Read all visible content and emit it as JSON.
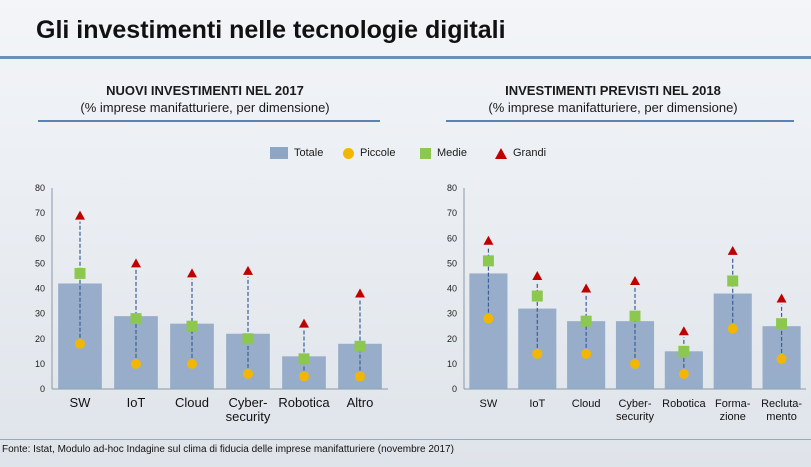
{
  "page": {
    "title": "Gli investimenti nelle tecnologie digitali",
    "footer": "Fonte: Istat, Modulo ad-hoc Indagine sul clima di fiducia delle imprese manifatturiere (novembre 2017)"
  },
  "legend": [
    "Totale",
    "Piccole",
    "Medie",
    "Grandi"
  ],
  "colors": {
    "totale": "#8ea6c4",
    "piccole": "#f2b705",
    "medie": "#8cc850",
    "grandi": "#c00000",
    "line": "#3b5f96"
  },
  "chart_data": [
    {
      "type": "bar",
      "title": "NUOVI INVESTIMENTI NEL 2017",
      "subtitle": "(% imprese manifatturiere, per dimensione)",
      "categories": [
        "SW",
        "IoT",
        "Cloud",
        "Cyber-\nsecurity",
        "Robotica",
        "Altro"
      ],
      "ylim": [
        0,
        80
      ],
      "yticks": [
        0,
        10,
        20,
        30,
        40,
        50,
        60,
        70,
        80
      ],
      "series": [
        {
          "name": "Totale",
          "values": [
            42,
            29,
            26,
            22,
            13,
            18
          ]
        },
        {
          "name": "Piccole",
          "values": [
            18,
            10,
            10,
            6,
            5,
            5
          ]
        },
        {
          "name": "Medie",
          "values": [
            46,
            28,
            25,
            20,
            12,
            17
          ]
        },
        {
          "name": "Grandi",
          "values": [
            69,
            50,
            46,
            47,
            26,
            38
          ]
        }
      ],
      "legend": "top",
      "grid": false
    },
    {
      "type": "bar",
      "title": "INVESTIMENTI PREVISTI NEL 2018",
      "subtitle": "(% imprese manifatturiere, per dimensione)",
      "categories": [
        "SW",
        "IoT",
        "Cloud",
        "Cyber-\nsecurity",
        "Robotica",
        "Formazione\n-zione",
        "Reclutamento\n-mento"
      ],
      "category_labels": [
        [
          "SW"
        ],
        [
          "IoT"
        ],
        [
          "Cloud"
        ],
        [
          "Cyber-",
          "security"
        ],
        [
          "Robotica"
        ],
        [
          "Forma-",
          "zione"
        ],
        [
          "Recluta-",
          "mento"
        ]
      ],
      "ylim": [
        0,
        80
      ],
      "yticks": [
        0,
        10,
        20,
        30,
        40,
        50,
        60,
        70,
        80
      ],
      "series": [
        {
          "name": "Totale",
          "values": [
            46,
            32,
            27,
            27,
            15,
            38,
            25
          ]
        },
        {
          "name": "Piccole",
          "values": [
            28,
            14,
            14,
            10,
            6,
            24,
            12
          ]
        },
        {
          "name": "Medie",
          "values": [
            51,
            37,
            27,
            29,
            15,
            43,
            26
          ]
        },
        {
          "name": "Grandi",
          "values": [
            59,
            45,
            40,
            43,
            23,
            55,
            36
          ]
        }
      ],
      "legend": "top",
      "grid": false
    }
  ]
}
